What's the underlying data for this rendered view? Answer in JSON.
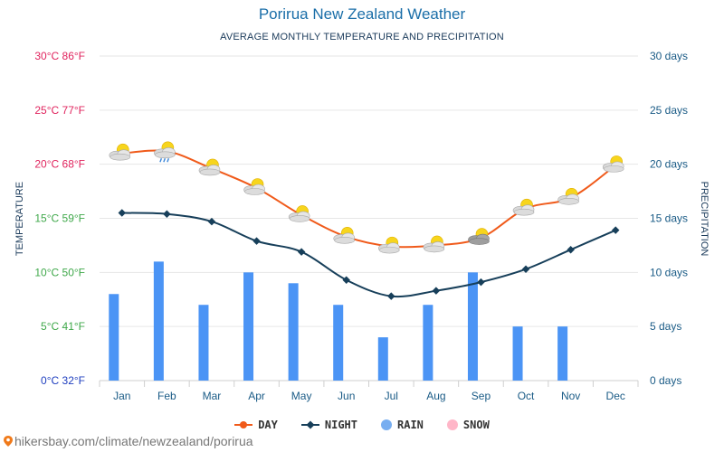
{
  "header": {
    "title": "Porirua New Zealand Weather",
    "subtitle": "AVERAGE MONTHLY TEMPERATURE AND PRECIPITATION"
  },
  "legend": {
    "day": "DAY",
    "night": "NIGHT",
    "rain": "RAIN",
    "snow": "SNOW"
  },
  "footer": {
    "source": "hikersbay.com/climate/newzealand/porirua"
  },
  "colors": {
    "day": "#f05a1a",
    "night": "#173f5a",
    "rain": "#4b94f5",
    "snow": "#ffb6c8",
    "legend_rain": "#78aef0"
  },
  "chart_data": {
    "type": "line",
    "categories": [
      "Jan",
      "Feb",
      "Mar",
      "Apr",
      "May",
      "Jun",
      "Jul",
      "Aug",
      "Sep",
      "Oct",
      "Nov",
      "Dec"
    ],
    "series": [
      {
        "name": "DAY",
        "type": "line",
        "axis": "temperature",
        "values": [
          21.0,
          21.2,
          19.6,
          17.8,
          15.3,
          13.3,
          12.4,
          12.5,
          13.2,
          15.9,
          16.9,
          19.9
        ]
      },
      {
        "name": "NIGHT",
        "type": "line",
        "axis": "temperature",
        "values": [
          15.5,
          15.4,
          14.7,
          12.9,
          11.9,
          9.3,
          7.8,
          8.3,
          9.1,
          10.3,
          12.1,
          13.9
        ]
      },
      {
        "name": "RAIN",
        "type": "bar",
        "axis": "precipitation",
        "values": [
          8,
          11,
          7,
          10,
          9,
          7,
          4,
          7,
          10,
          5,
          5,
          0
        ]
      }
    ],
    "weather_icons": [
      "sun-cloud-icon",
      "sun-rain-icon",
      "sun-cloud-icon",
      "sun-cloud-icon",
      "sun-cloud-icon",
      "sun-cloud-icon",
      "sun-cloud-icon",
      "sun-cloud-icon",
      "sun-dark-cloud-icon",
      "sun-cloud-icon",
      "sun-cloud-icon",
      "sun-cloud-icon"
    ],
    "left_axis": {
      "label": "TEMPERATURE",
      "range": [
        0,
        30
      ],
      "ticks": [
        "0°C 32°F",
        "5°C 41°F",
        "10°C 50°F",
        "15°C 59°F",
        "20°C 68°F",
        "25°C 77°F",
        "30°C 86°F"
      ],
      "tick_colors": [
        "#1f3fbf",
        "#3fa84a",
        "#3fa84a",
        "#3fa84a",
        "#e0245e",
        "#e0245e",
        "#e0245e"
      ]
    },
    "right_axis": {
      "label": "PRECIPITATION",
      "range": [
        0,
        30
      ],
      "ticks": [
        "0 days",
        "5 days",
        "10 days",
        "15 days",
        "20 days",
        "25 days",
        "30 days"
      ],
      "tick_color": "#1a5b86"
    },
    "grid": true,
    "legend_position": "bottom-center"
  }
}
